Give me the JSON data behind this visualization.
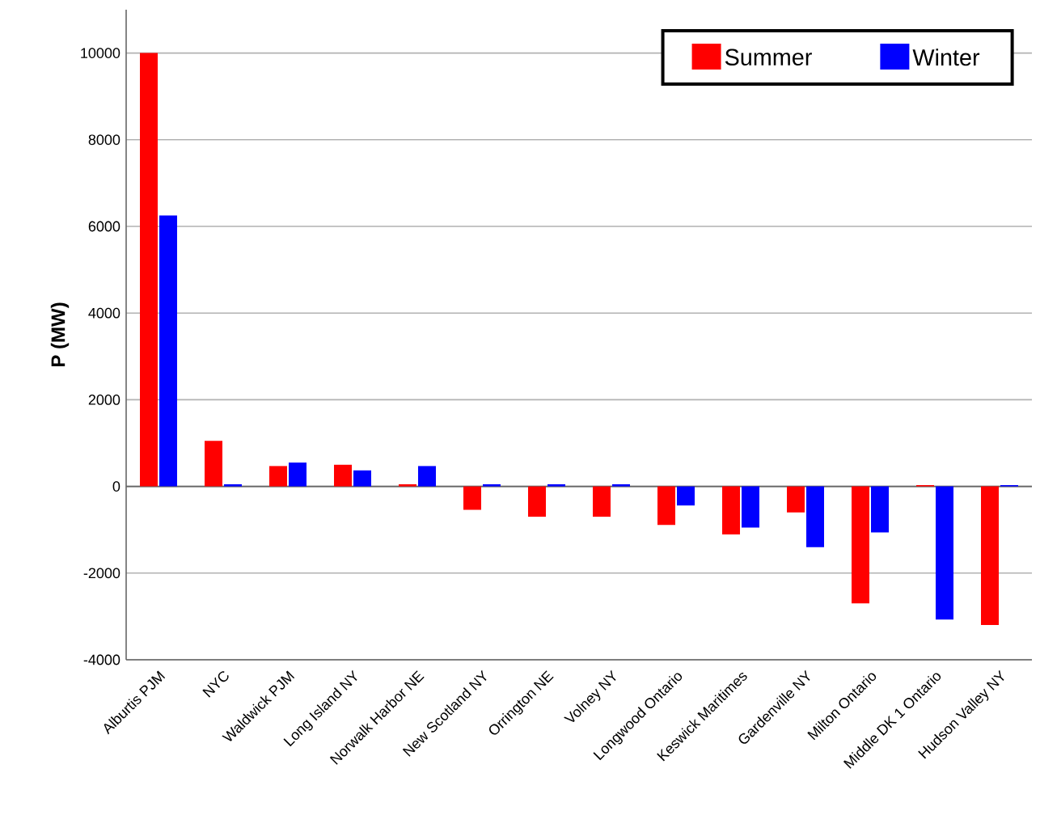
{
  "chart_data": {
    "type": "bar",
    "ylabel": "P (MW)",
    "categories": [
      "Alburtis PJM",
      "NYC",
      "Waldwick PJM",
      "Long Island NY",
      "Norwalk Harbor NE",
      "New Scotland NY",
      "Orrington NE",
      "Volney NY",
      "Longwood Ontario",
      "Keswick Maritimes",
      "Gardenville NY",
      "Milton Ontario",
      "Middle DK 1 Ontario",
      "Hudson Valley NY"
    ],
    "series": [
      {
        "name": "Summer",
        "color": "#ff0000",
        "values": [
          10000,
          1050,
          470,
          500,
          50,
          -540,
          -700,
          -700,
          -890,
          -1110,
          -600,
          -2700,
          30,
          -3200
        ]
      },
      {
        "name": "Winter",
        "color": "#0000ff",
        "values": [
          6250,
          50,
          550,
          370,
          470,
          50,
          50,
          50,
          -440,
          -950,
          -1400,
          -1060,
          -3070,
          30
        ]
      }
    ],
    "ylim": [
      -4000,
      11000
    ],
    "yticks": [
      -4000,
      -2000,
      0,
      2000,
      4000,
      6000,
      8000,
      10000
    ],
    "grid": "y",
    "legend": "top right"
  }
}
